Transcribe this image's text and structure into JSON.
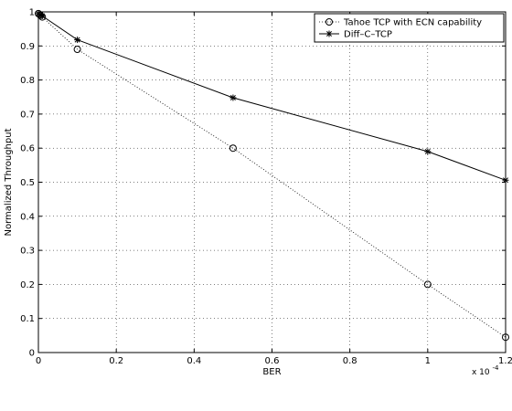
{
  "chart_data": {
    "type": "line",
    "xlabel": "BER",
    "ylabel": "Normalized Throughput",
    "x_multiplier": "x 10",
    "x_multiplier_exp": "-4",
    "xlim": [
      0,
      1.2
    ],
    "ylim": [
      0,
      1
    ],
    "xticks": [
      0,
      0.2,
      0.4,
      0.6,
      0.8,
      1,
      1.2
    ],
    "xtick_labels": [
      "0",
      "0.2",
      "0.4",
      "0.6",
      "0.8",
      "1",
      "1.2"
    ],
    "yticks": [
      0,
      0.1,
      0.2,
      0.3,
      0.4,
      0.5,
      0.6,
      0.7,
      0.8,
      0.9,
      1
    ],
    "ytick_labels": [
      "0",
      "0.1",
      "0.2",
      "0.3",
      "0.4",
      "0.5",
      "0.6",
      "0.7",
      "0.8",
      "0.9",
      "1"
    ],
    "grid": true,
    "legend_position": "top-right",
    "series": [
      {
        "name": "Tahoe TCP with ECN capability",
        "line_style": "dotted",
        "marker": "circle",
        "x": [
          0,
          0.005,
          0.01,
          0.1,
          0.5,
          1.0,
          1.2
        ],
        "y": [
          0.995,
          0.99,
          0.985,
          0.89,
          0.6,
          0.2,
          0.045
        ]
      },
      {
        "name": "Diff–C–TCP",
        "line_style": "solid",
        "marker": "star",
        "x": [
          0,
          0.005,
          0.01,
          0.1,
          0.5,
          1.0,
          1.2
        ],
        "y": [
          0.995,
          0.992,
          0.988,
          0.918,
          0.748,
          0.59,
          0.506
        ]
      }
    ]
  }
}
